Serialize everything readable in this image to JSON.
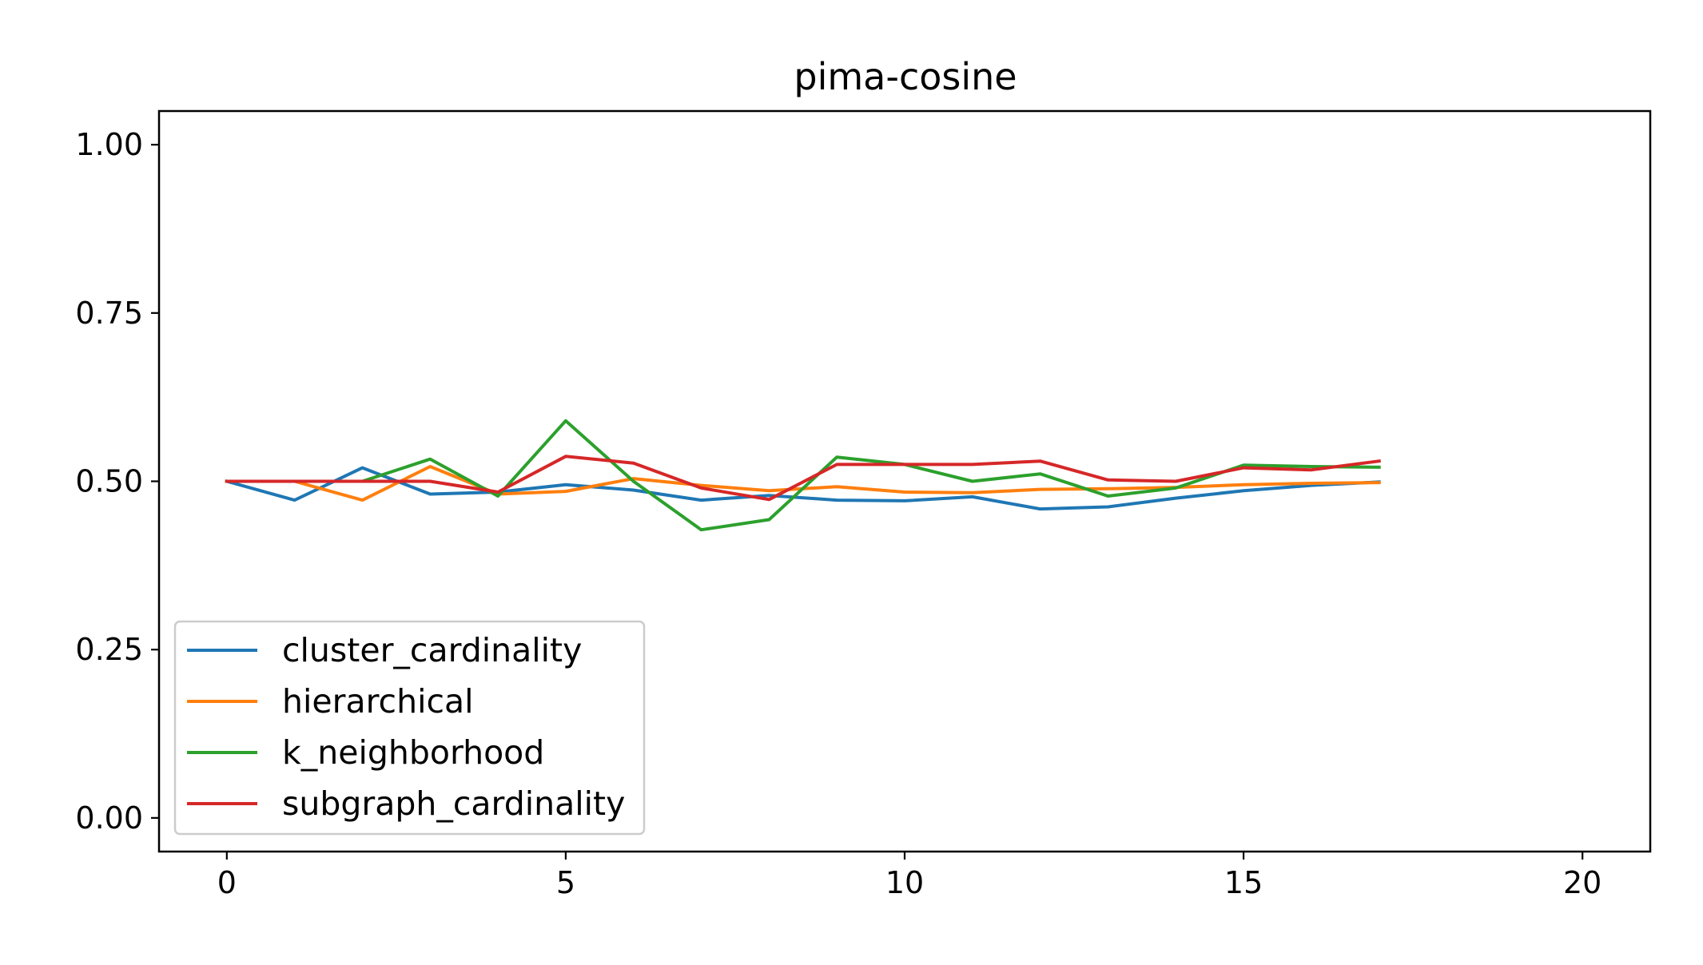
{
  "chart_data": {
    "type": "line",
    "title": "pima-cosine",
    "xlabel": "",
    "ylabel": "",
    "xlim": [
      -1,
      21
    ],
    "ylim": [
      -0.05,
      1.05
    ],
    "xticks": [
      0,
      5,
      10,
      15,
      20
    ],
    "xtick_labels": [
      "0",
      "5",
      "10",
      "15",
      "20"
    ],
    "yticks": [
      0.0,
      0.25,
      0.5,
      0.75,
      1.0
    ],
    "ytick_labels": [
      "0.00",
      "0.25",
      "0.50",
      "0.75",
      "1.00"
    ],
    "grid": false,
    "legend_position": "lower-left",
    "x": [
      0,
      1,
      2,
      3,
      4,
      5,
      6,
      7,
      8,
      9,
      10,
      11,
      12,
      13,
      14,
      15,
      16,
      17
    ],
    "series": [
      {
        "name": "cluster_cardinality",
        "color": "#1f77b4",
        "values": [
          0.5,
          0.472,
          0.52,
          0.481,
          0.484,
          0.495,
          0.487,
          0.472,
          0.479,
          0.472,
          0.471,
          0.477,
          0.459,
          0.462,
          0.475,
          0.486,
          0.494,
          0.499
        ]
      },
      {
        "name": "hierarchical",
        "color": "#ff7f0e",
        "values": [
          0.5,
          0.5,
          0.472,
          0.522,
          0.481,
          0.485,
          0.504,
          0.494,
          0.486,
          0.492,
          0.484,
          0.483,
          0.488,
          0.489,
          0.491,
          0.495,
          0.497,
          0.498
        ]
      },
      {
        "name": "k_neighborhood",
        "color": "#2ca02c",
        "values": [
          0.5,
          0.5,
          0.5,
          0.533,
          0.478,
          0.59,
          0.5,
          0.428,
          0.443,
          0.536,
          0.525,
          0.5,
          0.511,
          0.478,
          0.49,
          0.524,
          0.522,
          0.521
        ]
      },
      {
        "name": "subgraph_cardinality",
        "color": "#d62728",
        "values": [
          0.5,
          0.5,
          0.5,
          0.5,
          0.484,
          0.537,
          0.527,
          0.49,
          0.473,
          0.525,
          0.525,
          0.525,
          0.53,
          0.502,
          0.5,
          0.52,
          0.517,
          0.53
        ]
      }
    ]
  }
}
